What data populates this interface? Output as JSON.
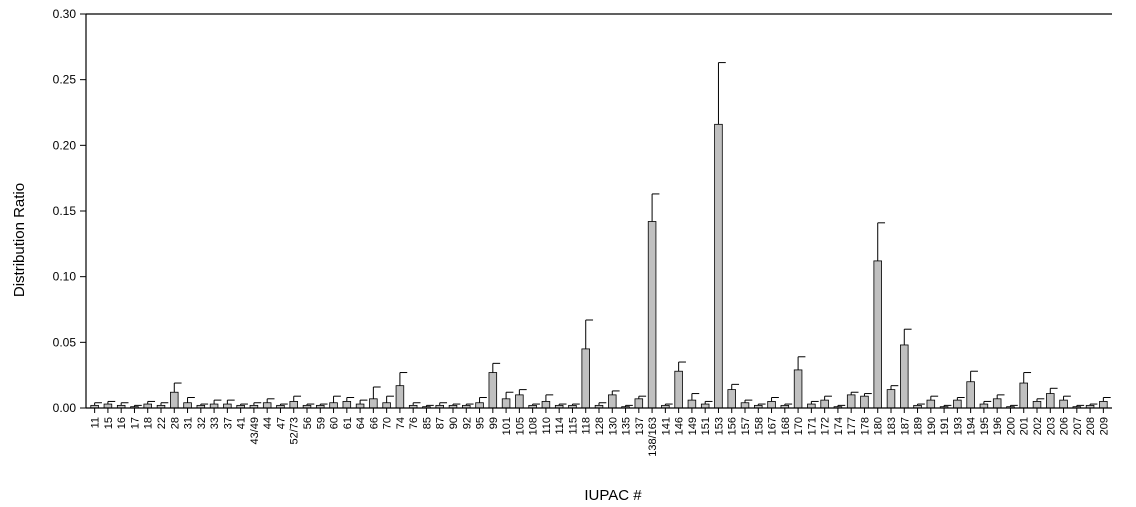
{
  "chart_data": {
    "type": "bar",
    "xlabel": "IUPAC #",
    "ylabel": "Distribution Ratio",
    "ylim": [
      0,
      0.3
    ],
    "yticks": [
      "0.00",
      "0.05",
      "0.10",
      "0.15",
      "0.20",
      "0.25",
      "0.30"
    ],
    "colors": {
      "bar": "#c0c0c0",
      "bar_edge": "#000000",
      "axis": "#000000"
    },
    "error_bars": true,
    "grid": false,
    "categories": [
      "11",
      "15",
      "16",
      "17",
      "18",
      "22",
      "28",
      "31",
      "32",
      "33",
      "37",
      "41",
      "43/49",
      "44",
      "47",
      "52/73",
      "56",
      "59",
      "60",
      "61",
      "64",
      "66",
      "70",
      "74",
      "76",
      "85",
      "87",
      "90",
      "92",
      "95",
      "99",
      "101",
      "105",
      "108",
      "110",
      "114",
      "115",
      "118",
      "128",
      "130",
      "135",
      "137",
      "138/163",
      "141",
      "146",
      "149",
      "151",
      "153",
      "156",
      "157",
      "158",
      "167",
      "168",
      "170",
      "171",
      "172",
      "174",
      "177",
      "178",
      "180",
      "183",
      "187",
      "189",
      "190",
      "191",
      "193",
      "194",
      "195",
      "196",
      "200",
      "201",
      "202",
      "203",
      "206",
      "207",
      "208",
      "209"
    ],
    "values": [
      0.002,
      0.003,
      0.002,
      0.001,
      0.003,
      0.002,
      0.012,
      0.004,
      0.002,
      0.003,
      0.003,
      0.002,
      0.002,
      0.004,
      0.002,
      0.005,
      0.002,
      0.002,
      0.004,
      0.005,
      0.003,
      0.007,
      0.004,
      0.017,
      0.002,
      0.001,
      0.002,
      0.002,
      0.002,
      0.004,
      0.027,
      0.007,
      0.01,
      0.002,
      0.005,
      0.002,
      0.002,
      0.045,
      0.002,
      0.01,
      0.001,
      0.007,
      0.142,
      0.002,
      0.028,
      0.006,
      0.003,
      0.216,
      0.014,
      0.004,
      0.002,
      0.005,
      0.002,
      0.029,
      0.003,
      0.006,
      0.001,
      0.01,
      0.009,
      0.112,
      0.014,
      0.048,
      0.002,
      0.006,
      0.001,
      0.006,
      0.02,
      0.003,
      0.007,
      0.001,
      0.019,
      0.005,
      0.011,
      0.006,
      0.001,
      0.002,
      0.005
    ],
    "errors": [
      0.002,
      0.002,
      0.002,
      0.001,
      0.002,
      0.002,
      0.007,
      0.004,
      0.001,
      0.003,
      0.003,
      0.001,
      0.002,
      0.003,
      0.001,
      0.004,
      0.001,
      0.001,
      0.005,
      0.003,
      0.003,
      0.009,
      0.005,
      0.01,
      0.002,
      0.001,
      0.002,
      0.001,
      0.001,
      0.004,
      0.007,
      0.005,
      0.004,
      0.001,
      0.005,
      0.001,
      0.001,
      0.022,
      0.002,
      0.003,
      0.001,
      0.002,
      0.021,
      0.001,
      0.007,
      0.005,
      0.002,
      0.047,
      0.004,
      0.002,
      0.001,
      0.003,
      0.001,
      0.01,
      0.002,
      0.003,
      0.001,
      0.002,
      0.002,
      0.029,
      0.003,
      0.012,
      0.001,
      0.003,
      0.001,
      0.002,
      0.008,
      0.002,
      0.003,
      0.001,
      0.008,
      0.002,
      0.004,
      0.003,
      0.001,
      0.001,
      0.003
    ]
  }
}
